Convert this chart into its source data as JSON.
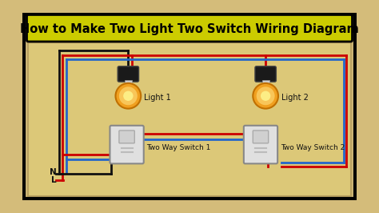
{
  "title": "How to Make Two Light Two Switch Wiring Diagram",
  "bg_color": "#d4bc7a",
  "title_bg": "#cccc00",
  "title_color": "#000000",
  "border_color": "#000000",
  "wire_black": "#111111",
  "wire_red": "#cc0000",
  "wire_blue": "#2266cc",
  "light1_label": "Light 1",
  "light2_label": "Light 2",
  "switch1_label": "Two Way Switch 1",
  "switch2_label": "Two Way Switch 2",
  "neutral_label": "N",
  "live_label": "L",
  "fig_width": 4.74,
  "fig_height": 2.66,
  "dpi": 100
}
